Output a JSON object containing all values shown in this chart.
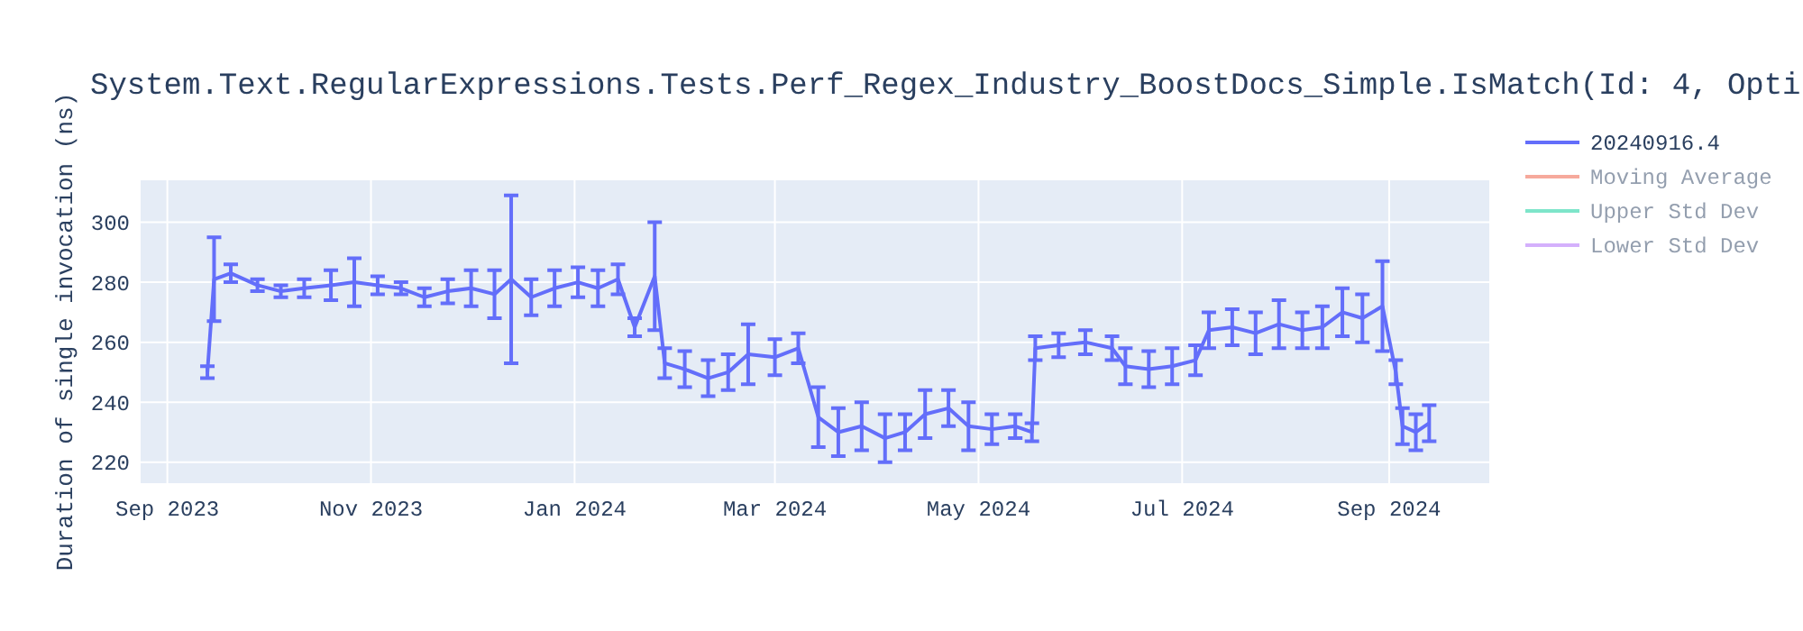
{
  "chart_data": {
    "type": "line",
    "title": "System.Text.RegularExpressions.Tests.Perf_Regex_Industry_BoostDocs_Simple.IsMatch(Id: 4, Opti",
    "ylabel": "Duration of single invocation (ns)",
    "x": [
      "2023-09-13",
      "2023-09-15",
      "2023-09-20",
      "2023-09-28",
      "2023-10-05",
      "2023-10-12",
      "2023-10-20",
      "2023-10-27",
      "2023-11-03",
      "2023-11-10",
      "2023-11-17",
      "2023-11-24",
      "2023-12-01",
      "2023-12-08",
      "2023-12-13",
      "2023-12-19",
      "2023-12-26",
      "2024-01-02",
      "2024-01-08",
      "2024-01-14",
      "2024-01-19",
      "2024-01-25",
      "2024-01-28",
      "2024-02-03",
      "2024-02-10",
      "2024-02-16",
      "2024-02-22",
      "2024-03-01",
      "2024-03-08",
      "2024-03-14",
      "2024-03-20",
      "2024-03-27",
      "2024-04-03",
      "2024-04-09",
      "2024-04-15",
      "2024-04-22",
      "2024-04-28",
      "2024-05-05",
      "2024-05-12",
      "2024-05-17",
      "2024-05-18",
      "2024-05-25",
      "2024-06-02",
      "2024-06-10",
      "2024-06-14",
      "2024-06-21",
      "2024-06-28",
      "2024-07-05",
      "2024-07-09",
      "2024-07-16",
      "2024-07-23",
      "2024-07-30",
      "2024-08-06",
      "2024-08-12",
      "2024-08-18",
      "2024-08-24",
      "2024-08-30",
      "2024-09-03",
      "2024-09-05",
      "2024-09-09",
      "2024-09-13"
    ],
    "series": [
      {
        "name": "20240916.4",
        "color": "#636efa",
        "values": [
          250,
          281,
          283,
          279,
          277,
          278,
          279,
          280,
          279,
          278,
          275,
          277,
          278,
          276,
          281,
          275,
          278,
          280,
          278,
          281,
          265,
          282,
          253,
          251,
          248,
          250,
          256,
          255,
          258,
          235,
          230,
          232,
          228,
          230,
          236,
          238,
          232,
          231,
          232,
          230,
          258,
          259,
          260,
          258,
          252,
          251,
          252,
          254,
          264,
          265,
          263,
          266,
          264,
          265,
          270,
          268,
          272,
          250,
          232,
          230,
          233
        ],
        "errors": [
          2,
          14,
          3,
          2,
          2,
          3,
          5,
          8,
          3,
          2,
          3,
          4,
          6,
          8,
          28,
          6,
          6,
          5,
          6,
          5,
          3,
          18,
          5,
          6,
          6,
          6,
          10,
          6,
          5,
          10,
          8,
          8,
          8,
          6,
          8,
          6,
          8,
          5,
          4,
          3,
          4,
          4,
          4,
          4,
          6,
          6,
          6,
          5,
          6,
          6,
          7,
          8,
          6,
          7,
          8,
          8,
          15,
          4,
          6,
          6,
          6
        ]
      },
      {
        "name": "Moving Average",
        "color": "#ef553b",
        "values": [
          null,
          null,
          null,
          null,
          null,
          null,
          null,
          null,
          null,
          null,
          null,
          null,
          null,
          null,
          null,
          null,
          null,
          null,
          null,
          null,
          null,
          null,
          null,
          null,
          null,
          null,
          null,
          null,
          null,
          null,
          null,
          null,
          null,
          null,
          null,
          null,
          null,
          null,
          null,
          null,
          null,
          null,
          null,
          null,
          null,
          null,
          null,
          null,
          null,
          null,
          null,
          null,
          null,
          null,
          null,
          null,
          null,
          null,
          null,
          null,
          null
        ]
      },
      {
        "name": "Upper Std Dev",
        "color": "#00cc96",
        "values": [
          null,
          null,
          null,
          null,
          null,
          null,
          null,
          null,
          null,
          null,
          null,
          null,
          null,
          null,
          null,
          null,
          null,
          null,
          null,
          null,
          null,
          null,
          null,
          null,
          null,
          null,
          null,
          null,
          null,
          null,
          null,
          null,
          null,
          null,
          null,
          null,
          null,
          null,
          null,
          null,
          null,
          null,
          null,
          null,
          null,
          null,
          null,
          null,
          null,
          null,
          null,
          null,
          null,
          null,
          null,
          null,
          null,
          null,
          null,
          null,
          null
        ]
      },
      {
        "name": "Lower Std Dev",
        "color": "#ab63fa",
        "values": [
          null,
          null,
          null,
          null,
          null,
          null,
          null,
          null,
          null,
          null,
          null,
          null,
          null,
          null,
          null,
          null,
          null,
          null,
          null,
          null,
          null,
          null,
          null,
          null,
          null,
          null,
          null,
          null,
          null,
          null,
          null,
          null,
          null,
          null,
          null,
          null,
          null,
          null,
          null,
          null,
          null,
          null,
          null,
          null,
          null,
          null,
          null,
          null,
          null,
          null,
          null,
          null,
          null,
          null,
          null,
          null,
          null,
          null,
          null,
          null,
          null
        ]
      }
    ],
    "xlim": [
      "2023-08-24",
      "2024-10-01"
    ],
    "xticks": [
      {
        "value": "2023-09-01",
        "label": "Sep 2023"
      },
      {
        "value": "2023-11-01",
        "label": "Nov 2023"
      },
      {
        "value": "2024-01-01",
        "label": "Jan 2024"
      },
      {
        "value": "2024-03-01",
        "label": "Mar 2024"
      },
      {
        "value": "2024-05-01",
        "label": "May 2024"
      },
      {
        "value": "2024-07-01",
        "label": "Jul 2024"
      },
      {
        "value": "2024-09-01",
        "label": "Sep 2024"
      }
    ],
    "ylim": [
      213,
      314
    ],
    "yticks": [
      220,
      240,
      260,
      280,
      300
    ],
    "grid": true,
    "legend": "top right",
    "marker": "none",
    "line_style": "solid"
  }
}
